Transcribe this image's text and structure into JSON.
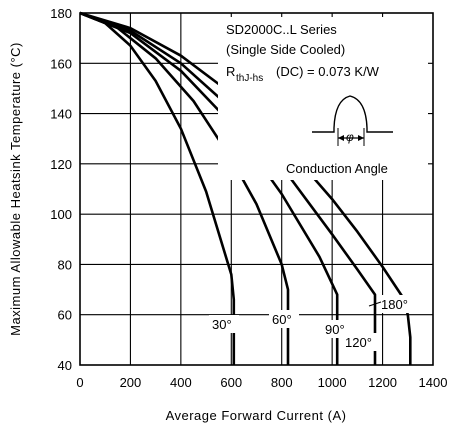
{
  "chart_data": {
    "type": "line",
    "title": "",
    "xlabel": "Average Forward Current (A)",
    "ylabel": "Maximum Allowable Heatsink Temperature (°C)",
    "xlim": [
      0,
      1400
    ],
    "ylim": [
      40,
      180
    ],
    "x_ticks": [
      "0",
      "200",
      "400",
      "600",
      "800",
      "1000",
      "1200",
      "1400"
    ],
    "y_ticks": [
      "40",
      "60",
      "80",
      "100",
      "120",
      "140",
      "160",
      "180"
    ],
    "grid": true,
    "annotations": {
      "series_name": "SD2000C..L Series",
      "cooling": "(Single Side Cooled)",
      "rth_prefix": "R",
      "rth_subscript": "thJ-hs",
      "rth_value": "(DC) = 0.073 K/W",
      "inset_label": "Conduction Angle",
      "inset_symbol": "φ"
    },
    "series": [
      {
        "name": "30°",
        "points": [
          [
            0,
            180
          ],
          [
            100,
            176
          ],
          [
            200,
            167
          ],
          [
            300,
            153
          ],
          [
            400,
            134
          ],
          [
            500,
            109
          ],
          [
            600,
            76
          ],
          [
            610,
            66
          ],
          [
            610,
            40
          ]
        ]
      },
      {
        "name": "60°",
        "points": [
          [
            0,
            180
          ],
          [
            150,
            174
          ],
          [
            300,
            162
          ],
          [
            450,
            145
          ],
          [
            600,
            122
          ],
          [
            700,
            104
          ],
          [
            800,
            80
          ],
          [
            825,
            70
          ],
          [
            825,
            40
          ]
        ]
      },
      {
        "name": "90°",
        "points": [
          [
            0,
            180
          ],
          [
            200,
            172
          ],
          [
            400,
            157
          ],
          [
            600,
            136
          ],
          [
            800,
            108
          ],
          [
            950,
            83
          ],
          [
            1020,
            68
          ],
          [
            1020,
            40
          ]
        ]
      },
      {
        "name": "120°",
        "points": [
          [
            0,
            180
          ],
          [
            200,
            173
          ],
          [
            400,
            160
          ],
          [
            600,
            142
          ],
          [
            800,
            119
          ],
          [
            1000,
            92
          ],
          [
            1100,
            78
          ],
          [
            1170,
            68
          ],
          [
            1170,
            40
          ]
        ]
      },
      {
        "name": "180°",
        "points": [
          [
            0,
            180
          ],
          [
            200,
            174
          ],
          [
            400,
            163
          ],
          [
            600,
            148
          ],
          [
            800,
            129
          ],
          [
            1000,
            106
          ],
          [
            1100,
            93
          ],
          [
            1200,
            79
          ],
          [
            1280,
            67
          ],
          [
            1300,
            60
          ],
          [
            1310,
            51
          ],
          [
            1310,
            40
          ]
        ]
      }
    ]
  }
}
